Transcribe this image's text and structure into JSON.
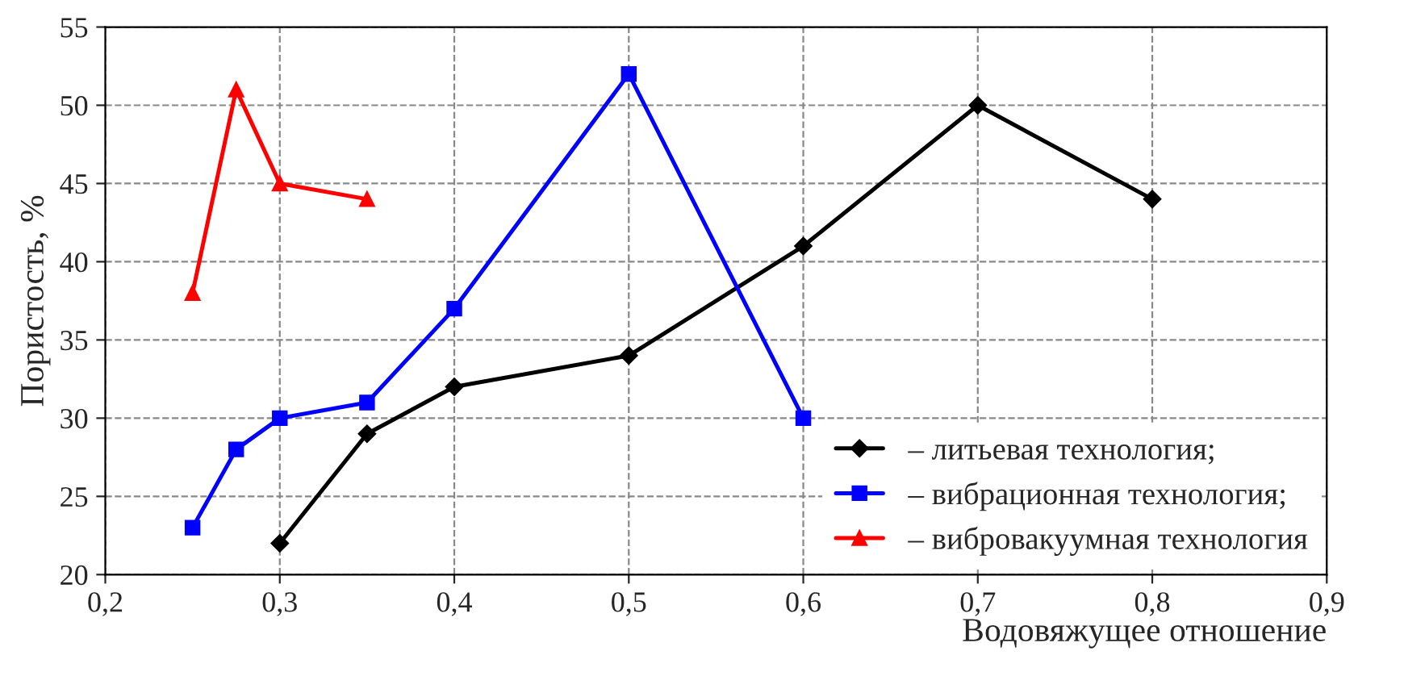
{
  "chart_data": {
    "type": "line",
    "xlabel": "Водовяжущее отношение",
    "ylabel": "Пористость, %",
    "xlim": [
      0.2,
      0.9
    ],
    "ylim": [
      20,
      55
    ],
    "xticks": [
      {
        "value": 0.2,
        "label": "0,2"
      },
      {
        "value": 0.3,
        "label": "0,3"
      },
      {
        "value": 0.4,
        "label": "0,4"
      },
      {
        "value": 0.5,
        "label": "0,5"
      },
      {
        "value": 0.6,
        "label": "0,6"
      },
      {
        "value": 0.7,
        "label": "0,7"
      },
      {
        "value": 0.8,
        "label": "0,8"
      },
      {
        "value": 0.9,
        "label": "0,9"
      }
    ],
    "yticks": [
      20,
      25,
      30,
      35,
      40,
      45,
      50,
      55
    ],
    "grid": true,
    "legend": "bottom right",
    "series": [
      {
        "name": "– литьевая технология;",
        "color": "#000000",
        "marker": "diamond",
        "x": [
          0.3,
          0.35,
          0.4,
          0.5,
          0.6,
          0.7,
          0.8
        ],
        "values": [
          22,
          29,
          32,
          34,
          41,
          50,
          44
        ]
      },
      {
        "name": "– вибрационная технология;",
        "color": "#0000ff",
        "marker": "square",
        "x": [
          0.25,
          0.275,
          0.3,
          0.35,
          0.4,
          0.5,
          0.6
        ],
        "values": [
          23,
          28,
          30,
          31,
          37,
          52,
          30
        ]
      },
      {
        "name": "– вибровакуумная технология",
        "color": "#ff0000",
        "marker": "triangle",
        "x": [
          0.25,
          0.275,
          0.3,
          0.35
        ],
        "values": [
          38,
          51,
          45,
          44
        ]
      }
    ]
  }
}
